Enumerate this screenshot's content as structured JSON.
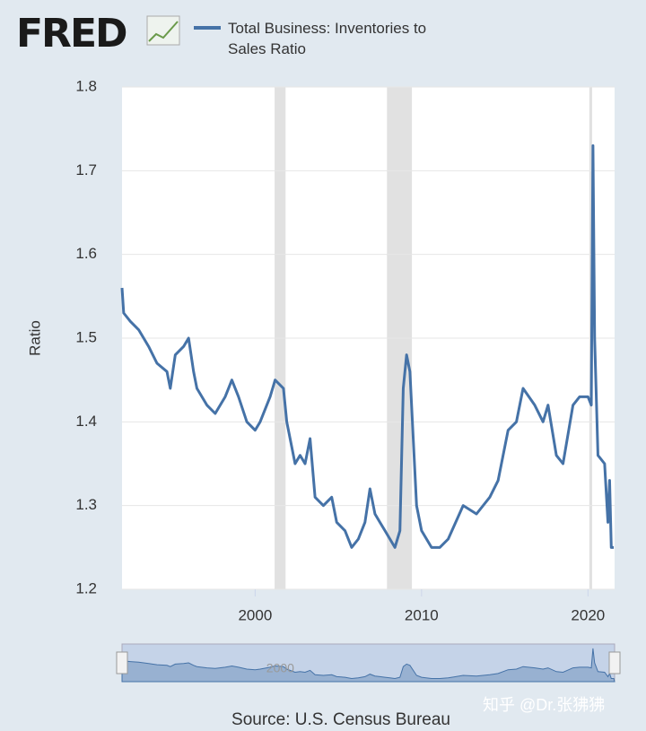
{
  "logo": "FRED",
  "chart_data": {
    "type": "line",
    "y_label": "Ratio",
    "source": "Source: U.S. Census Bureau",
    "watermark": "知乎 @Dr.张狒狒",
    "x": [
      1992.0,
      1992.1,
      1992.5,
      1993.0,
      1993.6,
      1994.1,
      1994.7,
      1994.9,
      1995.2,
      1995.7,
      1996.0,
      1996.3,
      1996.5,
      1997.1,
      1997.6,
      1998.2,
      1998.6,
      1999.0,
      1999.5,
      2000.0,
      2000.3,
      2000.9,
      2001.2,
      2001.7,
      2001.9,
      2002.4,
      2002.7,
      2003.0,
      2003.3,
      2003.6,
      2004.1,
      2004.6,
      2004.9,
      2005.4,
      2005.8,
      2006.2,
      2006.6,
      2006.9,
      2007.2,
      2007.5,
      2007.8,
      2008.1,
      2008.4,
      2008.7,
      2008.9,
      2009.1,
      2009.3,
      2009.5,
      2009.7,
      2010.0,
      2010.6,
      2011.1,
      2011.6,
      2012.5,
      2013.3,
      2014.1,
      2014.6,
      2015.2,
      2015.7,
      2016.1,
      2016.8,
      2017.3,
      2017.6,
      2018.1,
      2018.5,
      2019.1,
      2019.5,
      2020.0,
      2020.2,
      2020.3,
      2020.4,
      2020.6,
      2021.0,
      2021.2,
      2021.3,
      2021.4,
      2021.55
    ],
    "series": [
      {
        "name": "Total Business: Inventories to Sales Ratio",
        "color": "#4572a7",
        "values": [
          1.56,
          1.53,
          1.52,
          1.51,
          1.49,
          1.47,
          1.46,
          1.44,
          1.48,
          1.49,
          1.5,
          1.46,
          1.44,
          1.42,
          1.41,
          1.43,
          1.45,
          1.43,
          1.4,
          1.39,
          1.4,
          1.43,
          1.45,
          1.44,
          1.4,
          1.35,
          1.36,
          1.35,
          1.38,
          1.31,
          1.3,
          1.31,
          1.28,
          1.27,
          1.25,
          1.26,
          1.28,
          1.32,
          1.29,
          1.28,
          1.27,
          1.26,
          1.25,
          1.27,
          1.44,
          1.48,
          1.46,
          1.38,
          1.3,
          1.27,
          1.25,
          1.25,
          1.26,
          1.3,
          1.29,
          1.31,
          1.33,
          1.39,
          1.4,
          1.44,
          1.42,
          1.4,
          1.42,
          1.36,
          1.35,
          1.42,
          1.43,
          1.43,
          1.42,
          1.73,
          1.5,
          1.36,
          1.35,
          1.28,
          1.33,
          1.25,
          1.25
        ]
      }
    ],
    "recessions": [
      [
        2001.17,
        2001.83
      ],
      [
        2007.92,
        2009.42
      ],
      [
        2020.08,
        2020.25
      ]
    ],
    "xlim": [
      1992.0,
      2021.6
    ],
    "xticks": [
      2000,
      2010,
      2020
    ],
    "ylim": [
      1.2,
      1.8
    ],
    "yticks": [
      1.2,
      1.3,
      1.4,
      1.5,
      1.6,
      1.7,
      1.8
    ],
    "navigator_xticks": [
      2000
    ],
    "grid": true
  }
}
